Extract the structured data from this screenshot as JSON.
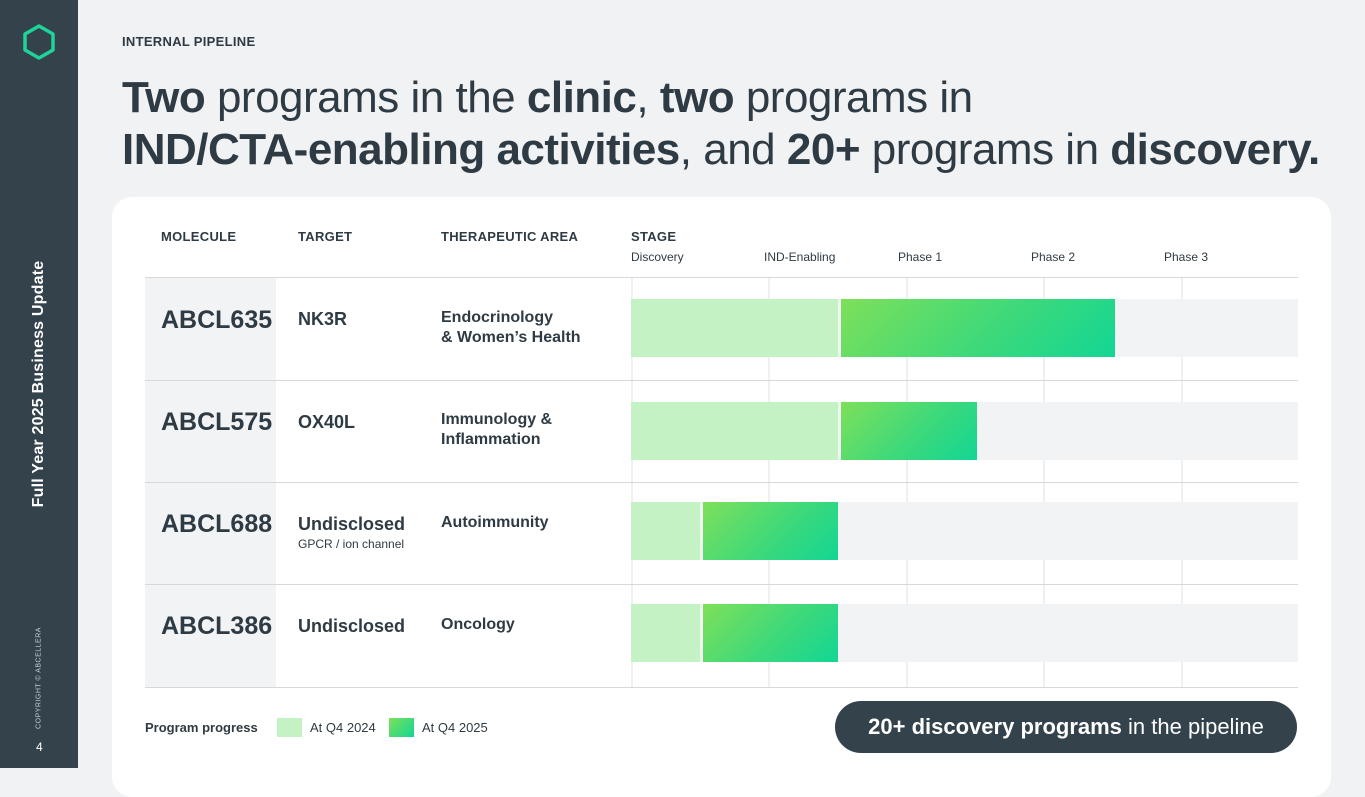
{
  "sidebar": {
    "title": "Full Year 2025 Business Update",
    "copyright": "COPYRIGHT © ABCELLERA",
    "page_number": "4",
    "logo_icon": "hexagon-logo-icon",
    "accent": "#1fd39a"
  },
  "header": {
    "kicker": "INTERNAL PIPELINE",
    "headline": {
      "l1_a": "Two",
      "l1_b": " programs in the ",
      "l1_c": "clinic",
      "l1_d": ", ",
      "l1_e": "two",
      "l1_f": " programs in",
      "l2_a": "IND/CTA-enabling activities",
      "l2_b": ", and ",
      "l2_c": "20+",
      "l2_d": " programs in ",
      "l2_e": "discovery."
    }
  },
  "table": {
    "columns": {
      "molecule": "MOLECULE",
      "target": "TARGET",
      "area": "THERAPEUTIC AREA",
      "stage": "STAGE"
    },
    "stages": [
      "Discovery",
      "IND-Enabling",
      "Phase 1",
      "Phase 2",
      "Phase 3"
    ],
    "rows": [
      {
        "molecule": "ABCL635",
        "target": "NK3R",
        "target_sub": "",
        "area": "Endocrinology\n& Women’s Health",
        "progress_q4_2024": 0.31,
        "progress_q4_2025": 0.725
      },
      {
        "molecule": "ABCL575",
        "target": "OX40L",
        "target_sub": "",
        "area": "Immunology &\nInflammation",
        "progress_q4_2024": 0.31,
        "progress_q4_2025": 0.518
      },
      {
        "molecule": "ABCL688",
        "target": "Undisclosed",
        "target_sub": "GPCR / ion channel",
        "area": "Autoimmunity",
        "progress_q4_2024": 0.104,
        "progress_q4_2025": 0.31
      },
      {
        "molecule": "ABCL386",
        "target": "Undisclosed",
        "target_sub": "",
        "area": "Oncology",
        "progress_q4_2024": 0.104,
        "progress_q4_2025": 0.31
      }
    ]
  },
  "legend": {
    "title": "Program progress",
    "prev_label": "At Q4 2024",
    "new_label": "At Q4 2025",
    "prev_color": "#c4f2c4",
    "new_color": "#2fd884"
  },
  "callout": {
    "bold": "20+ discovery programs",
    "rest": " in the pipeline"
  }
}
